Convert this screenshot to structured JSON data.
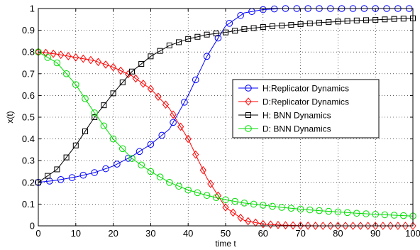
{
  "chart_data": {
    "type": "line",
    "title": "",
    "xlabel": "time t",
    "ylabel": "x(t)",
    "xlim": [
      0,
      100
    ],
    "ylim": [
      0,
      1
    ],
    "xticks": [
      0,
      10,
      20,
      30,
      40,
      50,
      60,
      70,
      80,
      90,
      100
    ],
    "yticks": [
      0,
      0.1,
      0.2,
      0.3,
      0.4,
      0.5,
      0.6,
      0.7,
      0.8,
      0.9,
      1
    ],
    "grid": true,
    "grid_style": "dotted",
    "legend_position": "center-right",
    "series": [
      {
        "name": "H:Replicator Dynamics",
        "color": "#0000ff",
        "marker": "circle",
        "x": [
          0,
          5,
          10,
          15,
          20,
          25,
          30,
          35,
          40,
          45,
          50,
          55,
          60,
          65,
          70,
          75,
          80,
          85,
          90,
          95,
          100
        ],
        "y": [
          0.2,
          0.21,
          0.225,
          0.245,
          0.275,
          0.32,
          0.375,
          0.445,
          0.6,
          0.78,
          0.92,
          0.98,
          0.995,
          1.0,
          1.0,
          1.0,
          1.0,
          1.0,
          1.0,
          1.0,
          1.0
        ]
      },
      {
        "name": "D:Replicator Dynamics",
        "color": "#ff0000",
        "marker": "diamond",
        "x": [
          0,
          5,
          10,
          15,
          20,
          25,
          30,
          35,
          40,
          45,
          50,
          55,
          60,
          65,
          70,
          75,
          80,
          85,
          90,
          95,
          100
        ],
        "y": [
          0.8,
          0.79,
          0.775,
          0.76,
          0.73,
          0.69,
          0.63,
          0.54,
          0.4,
          0.22,
          0.085,
          0.025,
          0.008,
          0.003,
          0.001,
          0.0,
          0.0,
          0.0,
          0.0,
          0.0,
          0.0
        ]
      },
      {
        "name": "H: BNN Dynamics",
        "color": "#000000",
        "marker": "square",
        "x": [
          0,
          5,
          10,
          15,
          20,
          25,
          30,
          35,
          40,
          45,
          50,
          55,
          60,
          65,
          70,
          75,
          80,
          85,
          90,
          95,
          100
        ],
        "y": [
          0.2,
          0.26,
          0.37,
          0.5,
          0.61,
          0.71,
          0.78,
          0.83,
          0.86,
          0.88,
          0.89,
          0.905,
          0.915,
          0.922,
          0.928,
          0.935,
          0.94,
          0.945,
          0.948,
          0.952,
          0.955
        ]
      },
      {
        "name": "D: BNN Dynamics",
        "color": "#00dd00",
        "marker": "circle",
        "x": [
          0,
          5,
          10,
          15,
          20,
          25,
          30,
          35,
          40,
          45,
          50,
          55,
          60,
          65,
          70,
          75,
          80,
          85,
          90,
          95,
          100
        ],
        "y": [
          0.8,
          0.75,
          0.65,
          0.52,
          0.4,
          0.31,
          0.25,
          0.2,
          0.165,
          0.14,
          0.12,
          0.105,
          0.095,
          0.085,
          0.077,
          0.07,
          0.064,
          0.058,
          0.053,
          0.049,
          0.045
        ]
      }
    ]
  }
}
